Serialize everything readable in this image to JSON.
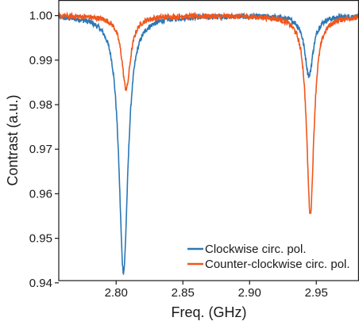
{
  "chart_data": {
    "type": "line",
    "title": "",
    "xlabel": "Freq. (GHz)",
    "ylabel": "Contrast (a.u.)",
    "xlim": [
      2.757,
      2.982
    ],
    "ylim": [
      0.9405,
      1.0035
    ],
    "x_ticks": [
      2.8,
      2.85,
      2.9,
      2.95
    ],
    "x_tick_labels": [
      "2.80",
      "2.85",
      "2.90",
      "2.95"
    ],
    "y_ticks": [
      0.94,
      0.95,
      0.96,
      0.97,
      0.98,
      0.99,
      1.0
    ],
    "y_tick_labels": [
      "0.94",
      "0.95",
      "0.96",
      "0.97",
      "0.98",
      "0.99",
      "1.00"
    ],
    "grid": false,
    "legend_position": "bottom-right",
    "series": [
      {
        "name": "Clockwise circ. pol.",
        "color": "#2b78b6",
        "dips": [
          {
            "center": 2.8055,
            "depth": 0.0575,
            "width": 0.0052
          },
          {
            "center": 2.9445,
            "depth": 0.0135,
            "width": 0.0048
          }
        ],
        "noise": 0.0006
      },
      {
        "name": "Counter-clockwise circ. pol.",
        "color": "#f0561c",
        "dips": [
          {
            "center": 2.8075,
            "depth": 0.0165,
            "width": 0.005
          },
          {
            "center": 2.9455,
            "depth": 0.0445,
            "width": 0.0042
          }
        ],
        "noise": 0.0006
      }
    ]
  }
}
